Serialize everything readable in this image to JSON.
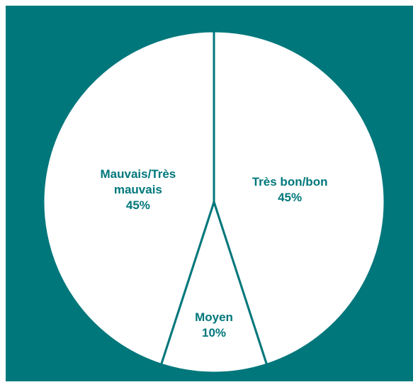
{
  "chart_data": {
    "type": "pie",
    "categories": [
      "Très bon/bon",
      "Moyen",
      "Mauvais/Très mauvais"
    ],
    "values": [
      45,
      10,
      45
    ],
    "value_labels": [
      "45%",
      "10%",
      "45%"
    ],
    "color": "#ffffff",
    "edge_color": "#00777b",
    "background": "#00777b"
  }
}
